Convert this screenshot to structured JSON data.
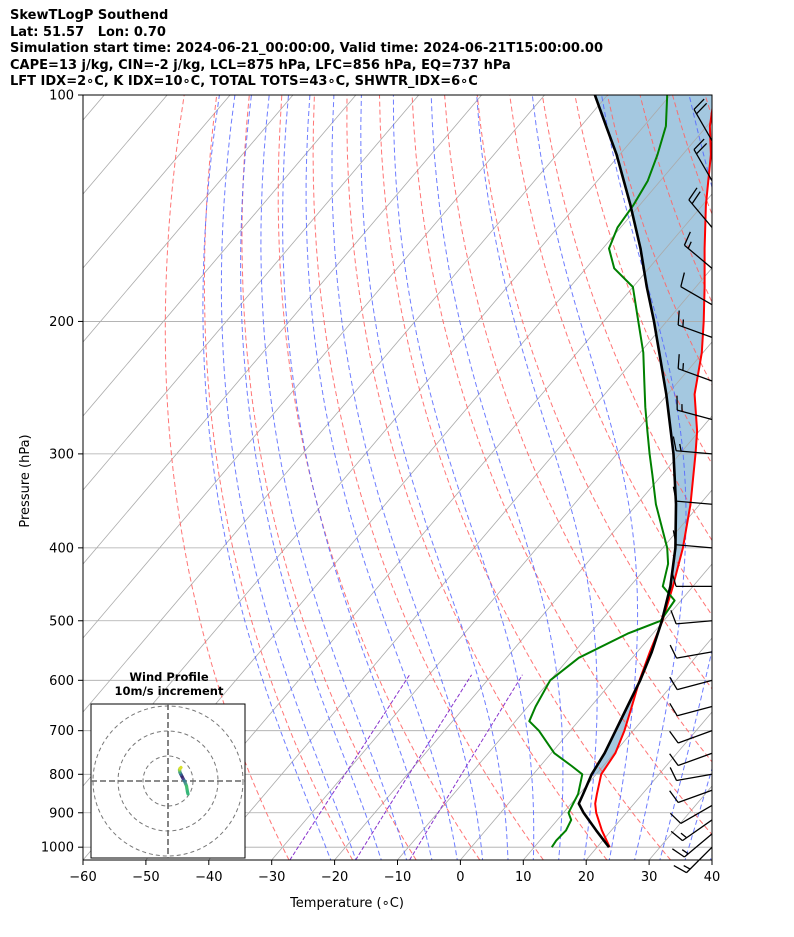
{
  "header": {
    "lines": [
      "SkewTLogP Southend",
      "Lat: 51.57   Lon: 0.70",
      "Simulation start time: 2024-06-21_00:00:00, Valid time: 2024-06-21T15:00:00.00",
      "CAPE=13 j/kg, CIN=-2 j/kg, LCL=875 hPa, LFC=856 hPa, EQ=737 hPa",
      "LFT IDX=2∘C, K IDX=10∘C, TOTAL TOTS=43∘C, SHWTR_IDX=6∘C"
    ]
  },
  "inset": {
    "title_line1": "Wind Profile",
    "title_line2": "10m/s increment"
  },
  "colors": {
    "temperature": "#ff0000",
    "dewpoint": "#008000",
    "parcel": "#000000",
    "cape_fill": "#a4c8e0",
    "dry_adiabat": "#ff6666",
    "moist_adiabat": "#5566ff",
    "mixing_ratio": "#8833cc",
    "isotherm": "#aaaaaa",
    "isobar": "#aaaaaa"
  },
  "chart_data": {
    "type": "line",
    "chart_kind": "skew-T log-P",
    "xlabel": "Temperature (∘C)",
    "ylabel": "Pressure (hPa)",
    "xlim": [
      -60,
      40
    ],
    "ylim": [
      1040,
      100
    ],
    "y_scale": "log",
    "x_ticks": [
      -60,
      -50,
      -40,
      -30,
      -20,
      -10,
      0,
      10,
      20,
      30,
      40
    ],
    "y_ticks": [
      1000,
      900,
      800,
      700,
      600,
      500,
      400,
      300,
      200,
      100
    ],
    "grid": true,
    "series": [
      {
        "key": "temperature",
        "pressure_hPa": [
          1000,
          950,
          900,
          875,
          850,
          800,
          750,
          700,
          650,
          600,
          550,
          500,
          450,
          400,
          350,
          300,
          280,
          250,
          220,
          200,
          180,
          160,
          140,
          120,
          110,
          100
        ],
        "temp_C": [
          22,
          18.5,
          15.2,
          13.8,
          12.8,
          10.8,
          10.2,
          8.6,
          6.5,
          4.2,
          2.0,
          -0.2,
          -3.2,
          -6.8,
          -11.5,
          -17.5,
          -20.3,
          -25.7,
          -30.2,
          -34.1,
          -38.6,
          -43.8,
          -49.5,
          -55.5,
          -59.5,
          -63.0
        ]
      },
      {
        "key": "dewpoint",
        "pressure_hPa": [
          1000,
          980,
          950,
          920,
          900,
          850,
          800,
          780,
          750,
          700,
          680,
          650,
          600,
          560,
          520,
          500,
          470,
          450,
          420,
          400,
          350,
          320,
          300,
          280,
          260,
          240,
          220,
          200,
          180,
          170,
          160,
          150,
          140,
          130,
          120,
          110,
          100
        ],
        "temp_C": [
          12.8,
          12.6,
          12.8,
          12.2,
          10.8,
          9.8,
          7.8,
          5.0,
          0.5,
          -5.0,
          -7.8,
          -8.8,
          -10.0,
          -8.5,
          -4.0,
          -0.5,
          -1.0,
          -4.8,
          -7.0,
          -9.3,
          -17.0,
          -21.5,
          -24.8,
          -28.2,
          -31.8,
          -35.5,
          -39.5,
          -44.5,
          -50.0,
          -55.5,
          -59.0,
          -60.5,
          -61.0,
          -62.0,
          -64.0,
          -66.5,
          -70.5
        ]
      },
      {
        "key": "parcel",
        "pressure_hPa": [
          1000,
          950,
          900,
          875,
          850,
          800,
          750,
          700,
          650,
          600,
          550,
          500,
          450,
          400,
          350,
          300,
          250,
          200,
          180,
          160,
          140,
          120,
          110,
          100
        ],
        "temp_C": [
          21.9,
          17.6,
          13.2,
          11.2,
          10.6,
          9.3,
          8.5,
          7.2,
          5.8,
          4.3,
          2.3,
          -0.3,
          -3.6,
          -8.0,
          -13.8,
          -21.0,
          -30.2,
          -42.0,
          -47.8,
          -54.0,
          -61.5,
          -70.5,
          -76.0,
          -82.0
        ]
      }
    ],
    "wind_barbs": {
      "pressure_hPa": [
        1000,
        960,
        920,
        880,
        840,
        800,
        750,
        700,
        650,
        600,
        550,
        500,
        450,
        400,
        350,
        300,
        270,
        240,
        210,
        190,
        170,
        150,
        130,
        115
      ],
      "speed_kt": [
        15,
        15,
        15,
        10,
        10,
        10,
        10,
        10,
        10,
        10,
        10,
        10,
        10,
        10,
        10,
        15,
        15,
        15,
        15,
        10,
        15,
        20,
        20,
        20
      ],
      "direction_deg": [
        225,
        230,
        235,
        240,
        250,
        260,
        250,
        250,
        255,
        255,
        260,
        265,
        270,
        275,
        275,
        275,
        285,
        290,
        290,
        300,
        310,
        320,
        330,
        330
      ]
    },
    "hodograph": {
      "rings": 3,
      "u_ms": [
        0.8,
        0.7,
        0.6,
        0.5,
        0.3,
        0.1,
        -0.2,
        -0.4,
        -0.6,
        -0.8,
        -0.9,
        -0.8,
        -0.6
      ],
      "v_ms": [
        -2.6,
        -2.2,
        -1.6,
        -1.0,
        -0.5,
        0.0,
        0.5,
        0.9,
        1.3,
        1.7,
        2.2,
        2.5,
        2.7
      ],
      "colors": [
        "#36b77a",
        "#36b77a",
        "#40bd74",
        "#45c06e",
        "#4c9a8d",
        "#3b7d8f",
        "#4a3c8a",
        "#3a2a6e",
        "#2f5c8d",
        "#44a07d",
        "#8fd14f",
        "#d9e02a",
        "#f0e31c"
      ]
    }
  }
}
